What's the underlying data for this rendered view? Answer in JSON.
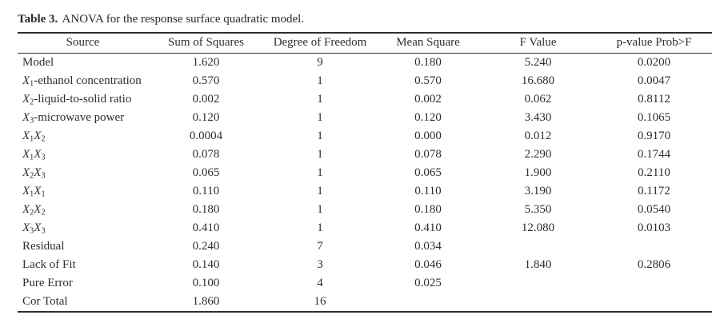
{
  "caption": {
    "label": "Table 3.",
    "text": "ANOVA for the response surface quadratic model."
  },
  "table": {
    "columns": [
      "Source",
      "Sum of Squares",
      "Degree of Freedom",
      "Mean Square",
      "F Value",
      "p-value Prob>F"
    ],
    "rows": [
      {
        "source": "Model",
        "cells": [
          "1.620",
          "9",
          "0.180",
          "5.240",
          "0.0200"
        ]
      },
      {
        "source": "X1-ethanol concentration",
        "cells": [
          "0.570",
          "1",
          "0.570",
          "16.680",
          "0.0047"
        ]
      },
      {
        "source": "X2-liquid-to-solid ratio",
        "cells": [
          "0.002",
          "1",
          "0.002",
          "0.062",
          "0.8112"
        ]
      },
      {
        "source": "X3-microwave power",
        "cells": [
          "0.120",
          "1",
          "0.120",
          "3.430",
          "0.1065"
        ]
      },
      {
        "source": "X1X2",
        "cells": [
          "0.0004",
          "1",
          "0.000",
          "0.012",
          "0.9170"
        ]
      },
      {
        "source": "X1X3",
        "cells": [
          "0.078",
          "1",
          "0.078",
          "2.290",
          "0.1744"
        ]
      },
      {
        "source": "X2X3",
        "cells": [
          "0.065",
          "1",
          "0.065",
          "1.900",
          "0.2110"
        ]
      },
      {
        "source": "X1X1",
        "cells": [
          "0.110",
          "1",
          "0.110",
          "3.190",
          "0.1172"
        ]
      },
      {
        "source": "X2X2",
        "cells": [
          "0.180",
          "1",
          "0.180",
          "5.350",
          "0.0540"
        ]
      },
      {
        "source": "X3X3",
        "cells": [
          "0.410",
          "1",
          "0.410",
          "12.080",
          "0.0103"
        ]
      },
      {
        "source": "Residual",
        "cells": [
          "0.240",
          "7",
          "0.034",
          "",
          ""
        ]
      },
      {
        "source": "Lack of Fit",
        "cells": [
          "0.140",
          "3",
          "0.046",
          "1.840",
          "0.2806"
        ]
      },
      {
        "source": "Pure Error",
        "cells": [
          "0.100",
          "4",
          "0.025",
          "",
          ""
        ]
      },
      {
        "source": "Cor Total",
        "cells": [
          "1.860",
          "16",
          "",
          "",
          ""
        ]
      }
    ]
  },
  "colors": {
    "text": "#2e2e2e",
    "rule": "#2e2e2e",
    "background": "#ffffff"
  }
}
